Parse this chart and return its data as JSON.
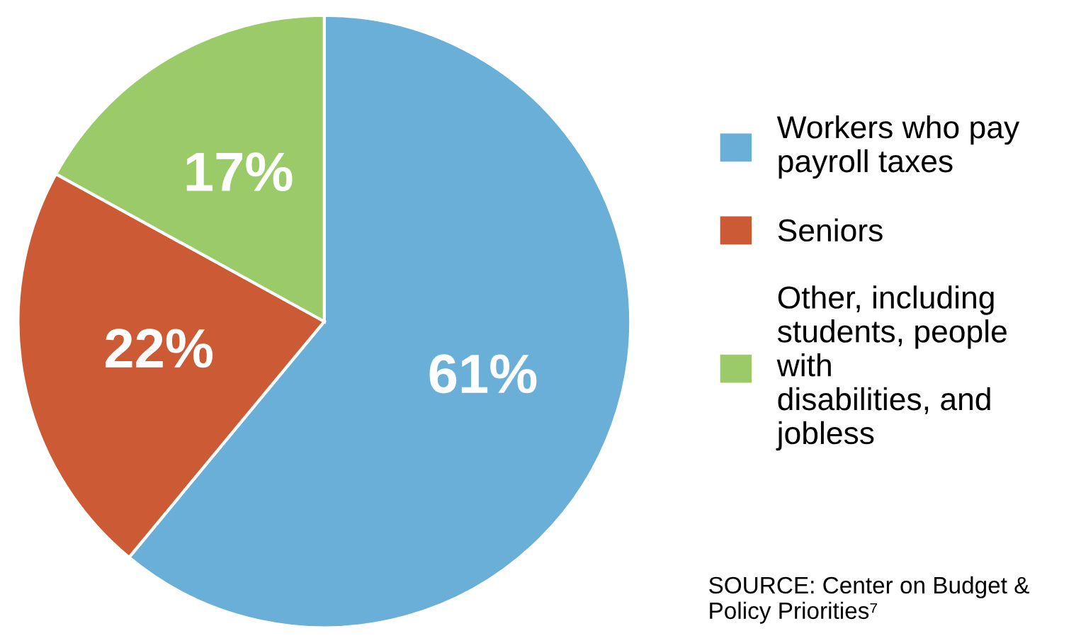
{
  "chart_data": {
    "type": "pie",
    "categories": [
      "Workers who pay payroll taxes",
      "Seniors",
      "Other, including students, people with disabilities, and jobless"
    ],
    "values": [
      61,
      22,
      17
    ],
    "colors": [
      "#6aafd8",
      "#cc5a35",
      "#9acb68"
    ],
    "value_labels": [
      "61%",
      "22%",
      "17%"
    ],
    "legend": "right",
    "annotations": [
      "SOURCE: Center on Budget & Policy Priorities⁷"
    ]
  }
}
